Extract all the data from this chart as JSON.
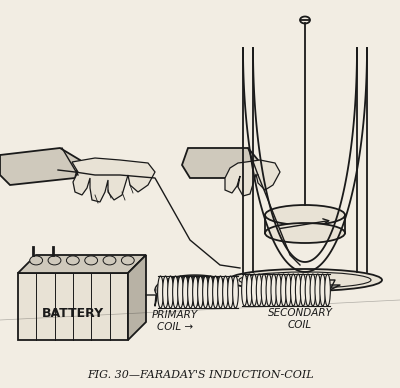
{
  "caption": "FIG. 30—FARADAY'S INDUCTION-COIL",
  "caption_fontsize": 8,
  "bg_color": "#f2ede3",
  "line_color": "#1a1a1a",
  "fill_light": "#e8e2d5",
  "fill_mid": "#cfc9bc",
  "fill_dark": "#b8b2a5",
  "fig_width": 4.0,
  "fig_height": 3.88,
  "label_primary": "PRIMARY\nCOIL →",
  "label_secondary": "SECONDARY\nCOIL",
  "label_battery": "BATTERY"
}
